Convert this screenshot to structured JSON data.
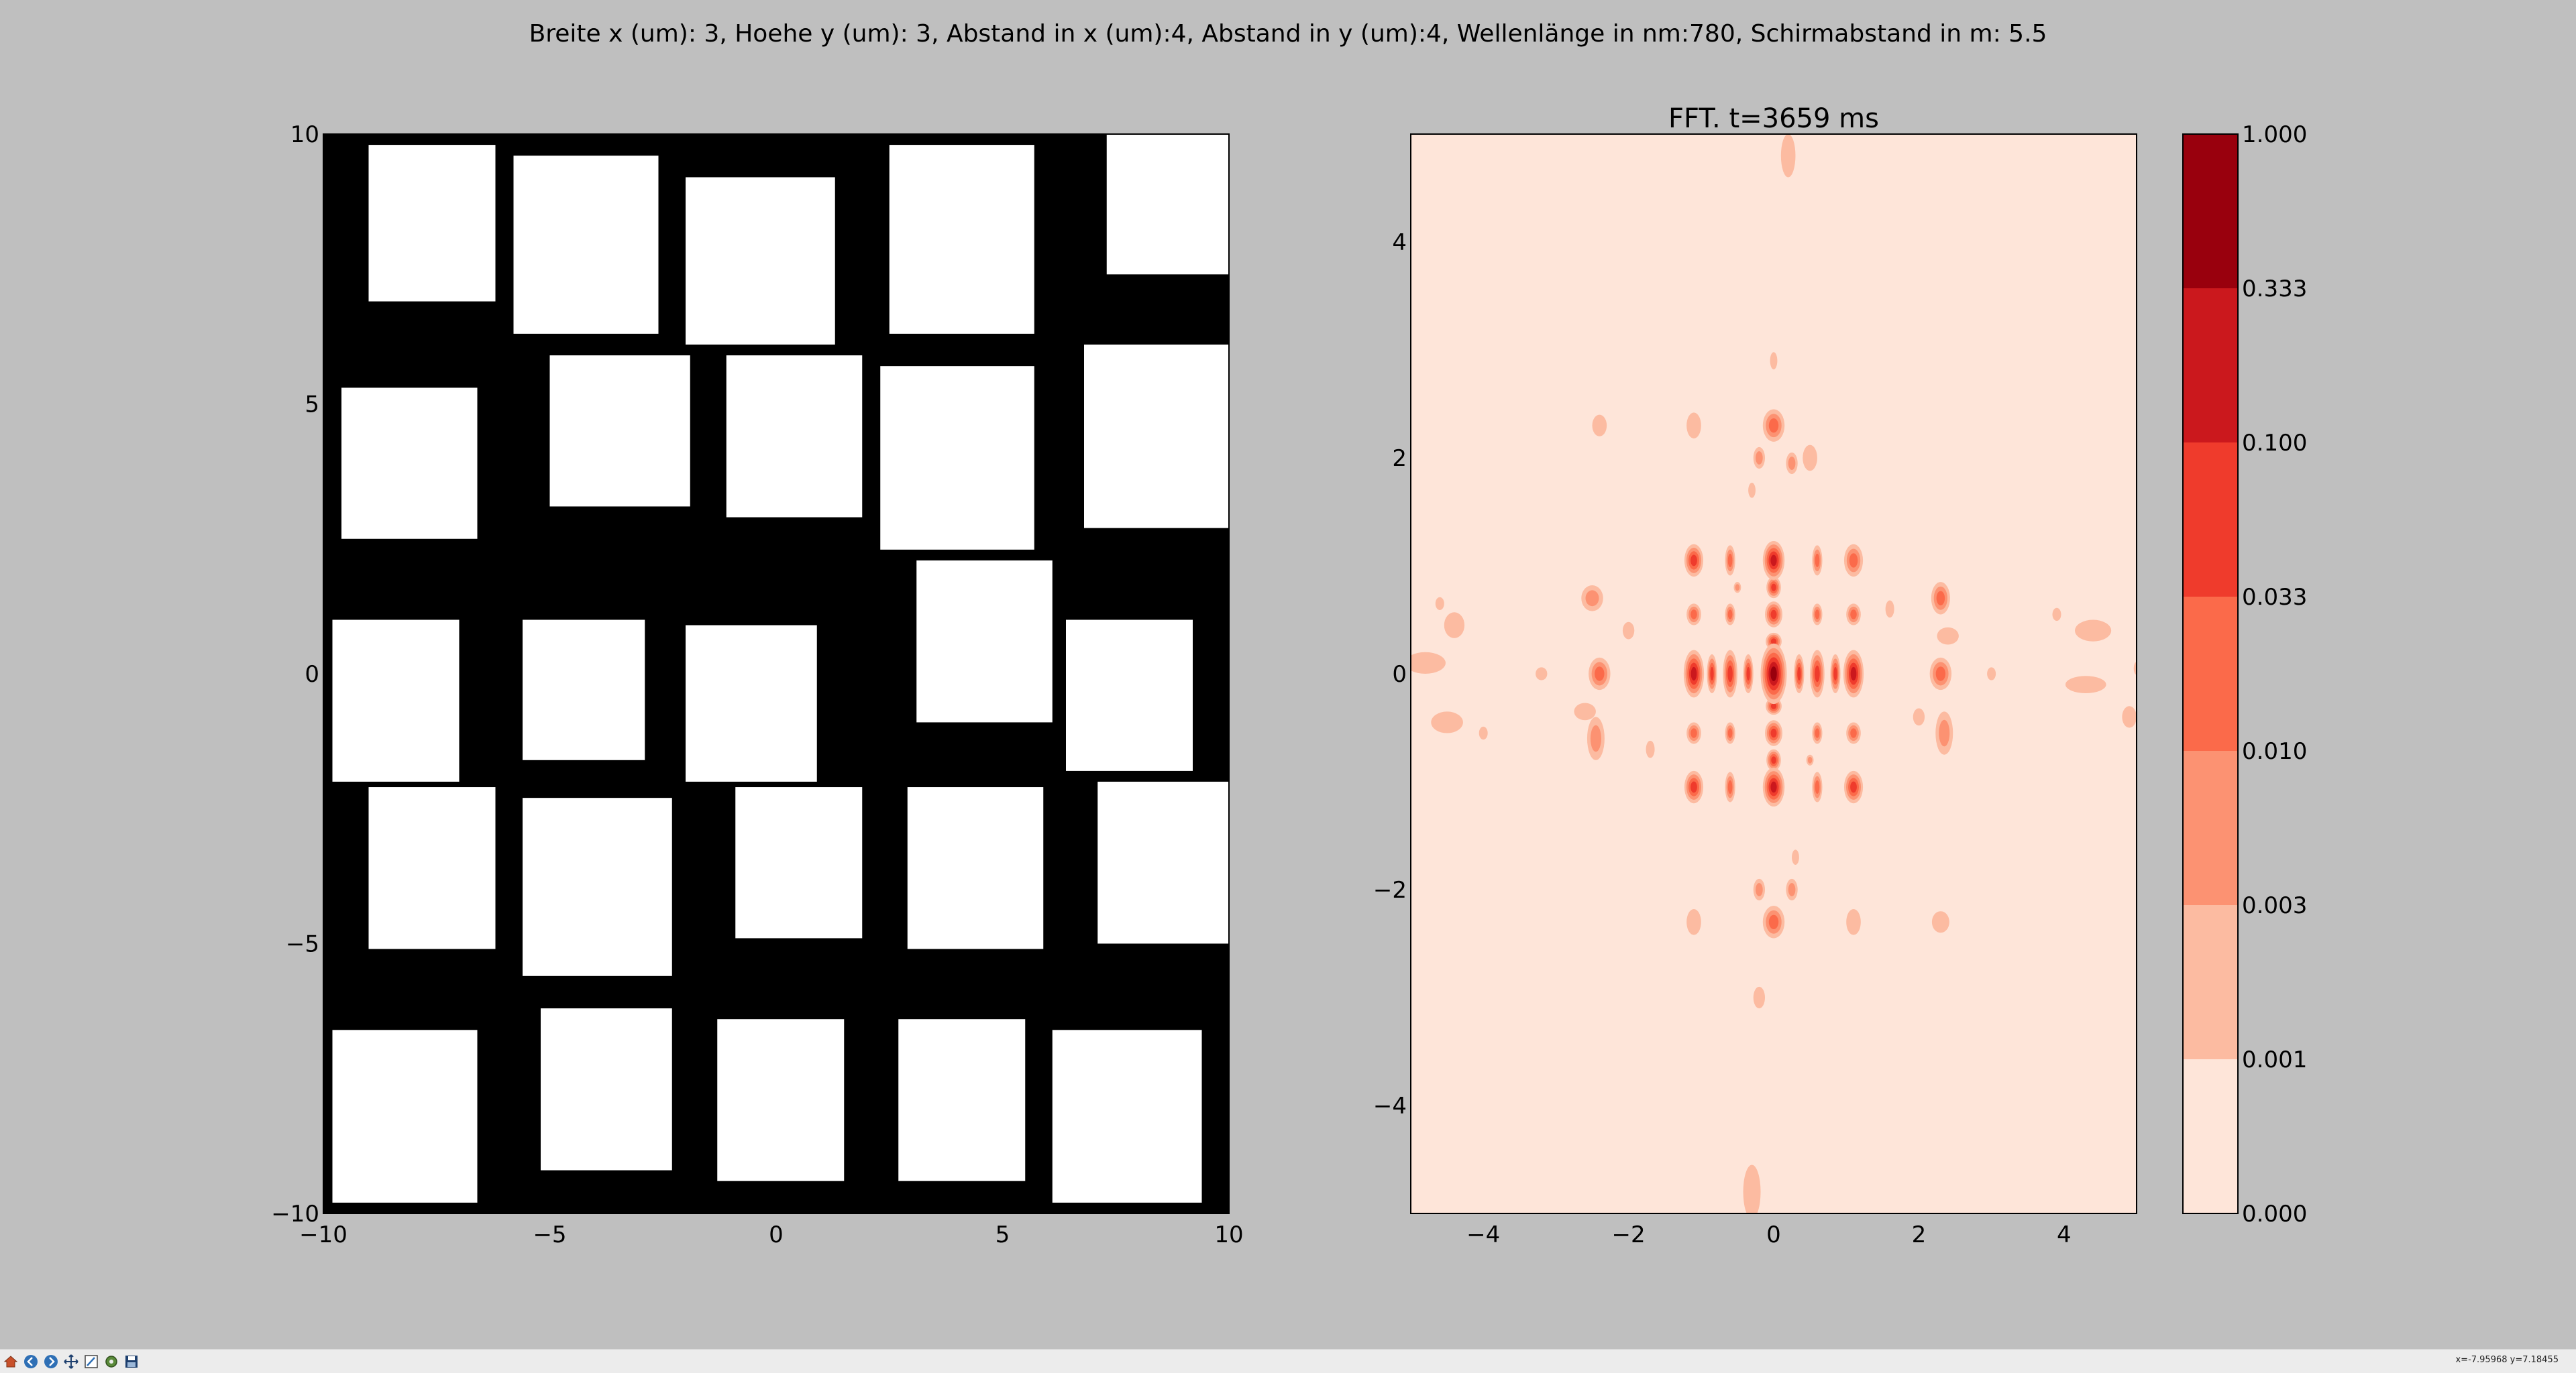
{
  "figure": {
    "suptitle": "Breite x (um): 3, Hoehe y (um): 3, Abstand in x (um):4, Abstand in y (um):4, Wellenlänge in nm:780, Schirmabstand in m: 5.5"
  },
  "chart_data": [
    {
      "type": "other",
      "title": "",
      "xlim": [
        -10,
        10
      ],
      "ylim": [
        -10,
        10
      ],
      "xticks": [
        "−10",
        "−5",
        "0",
        "5",
        "10"
      ],
      "yticks": [
        "10",
        "5",
        "0",
        "−5",
        "−10"
      ],
      "background": "#000000",
      "rect_color": "#ffffff",
      "rects": [
        {
          "x0": -9.0,
          "x1": -6.2,
          "y0": 6.9,
          "y1": 9.8
        },
        {
          "x0": -5.8,
          "x1": -2.6,
          "y0": 6.3,
          "y1": 9.6
        },
        {
          "x0": -2.0,
          "x1": 1.3,
          "y0": 6.1,
          "y1": 9.2
        },
        {
          "x0": 2.5,
          "x1": 5.7,
          "y0": 6.3,
          "y1": 9.8
        },
        {
          "x0": 7.3,
          "x1": 10.0,
          "y0": 7.4,
          "y1": 10.0
        },
        {
          "x0": -9.6,
          "x1": -6.6,
          "y0": 2.5,
          "y1": 5.3
        },
        {
          "x0": -5.0,
          "x1": -1.9,
          "y0": 3.1,
          "y1": 5.9
        },
        {
          "x0": -1.1,
          "x1": 1.9,
          "y0": 2.9,
          "y1": 5.9
        },
        {
          "x0": 2.3,
          "x1": 5.7,
          "y0": 2.3,
          "y1": 5.7
        },
        {
          "x0": 6.8,
          "x1": 10.0,
          "y0": 2.7,
          "y1": 6.1
        },
        {
          "x0": -9.8,
          "x1": -7.0,
          "y0": -2.0,
          "y1": 1.0
        },
        {
          "x0": -5.6,
          "x1": -2.9,
          "y0": -1.6,
          "y1": 1.0
        },
        {
          "x0": -2.0,
          "x1": 0.9,
          "y0": -2.0,
          "y1": 0.9
        },
        {
          "x0": 3.1,
          "x1": 6.1,
          "y0": -0.9,
          "y1": 2.1
        },
        {
          "x0": 6.4,
          "x1": 9.2,
          "y0": -1.8,
          "y1": 1.0
        },
        {
          "x0": -9.0,
          "x1": -6.2,
          "y0": -5.1,
          "y1": -2.1
        },
        {
          "x0": -5.6,
          "x1": -2.3,
          "y0": -5.6,
          "y1": -2.3
        },
        {
          "x0": -0.9,
          "x1": 1.9,
          "y0": -4.9,
          "y1": -2.1
        },
        {
          "x0": 2.9,
          "x1": 5.9,
          "y0": -5.1,
          "y1": -2.1
        },
        {
          "x0": 7.1,
          "x1": 10.0,
          "y0": -5.0,
          "y1": -2.0
        },
        {
          "x0": -9.8,
          "x1": -6.6,
          "y0": -9.8,
          "y1": -6.6
        },
        {
          "x0": -5.2,
          "x1": -2.3,
          "y0": -9.2,
          "y1": -6.2
        },
        {
          "x0": -1.3,
          "x1": 1.5,
          "y0": -9.4,
          "y1": -6.4
        },
        {
          "x0": 2.7,
          "x1": 5.5,
          "y0": -9.4,
          "y1": -6.4
        },
        {
          "x0": 6.1,
          "x1": 9.4,
          "y0": -9.8,
          "y1": -6.6
        }
      ]
    },
    {
      "type": "heatmap",
      "title": "FFT. t=3659 ms",
      "xlim": [
        -5,
        5
      ],
      "ylim": [
        -5,
        5
      ],
      "xticks": [
        "−4",
        "−2",
        "0",
        "2",
        "4"
      ],
      "yticks": [
        "4",
        "2",
        "0",
        "−2",
        "−4"
      ],
      "level_colors": [
        "#fee5d9",
        "#fcbba1",
        "#fc9272",
        "#fb6a4a",
        "#ef3b2c",
        "#cb181d",
        "#99000d"
      ],
      "blobs": [
        {
          "x": 0.0,
          "y": 0.0,
          "rx": 0.18,
          "ry": 0.28,
          "level": 6
        },
        {
          "x": -0.6,
          "y": 0.0,
          "rx": 0.1,
          "ry": 0.22,
          "level": 4
        },
        {
          "x": 0.6,
          "y": 0.0,
          "rx": 0.1,
          "ry": 0.22,
          "level": 4
        },
        {
          "x": -1.1,
          "y": 0.0,
          "rx": 0.14,
          "ry": 0.22,
          "level": 5
        },
        {
          "x": 1.1,
          "y": 0.0,
          "rx": 0.14,
          "ry": 0.22,
          "level": 5
        },
        {
          "x": -0.85,
          "y": 0.0,
          "rx": 0.07,
          "ry": 0.18,
          "level": 4
        },
        {
          "x": 0.85,
          "y": 0.0,
          "rx": 0.07,
          "ry": 0.18,
          "level": 4
        },
        {
          "x": -0.35,
          "y": 0.0,
          "rx": 0.07,
          "ry": 0.18,
          "level": 4
        },
        {
          "x": 0.35,
          "y": 0.0,
          "rx": 0.07,
          "ry": 0.18,
          "level": 4
        },
        {
          "x": 0.0,
          "y": 1.05,
          "rx": 0.15,
          "ry": 0.18,
          "level": 5
        },
        {
          "x": 0.0,
          "y": -1.05,
          "rx": 0.15,
          "ry": 0.18,
          "level": 5
        },
        {
          "x": 0.0,
          "y": 0.55,
          "rx": 0.12,
          "ry": 0.12,
          "level": 4
        },
        {
          "x": 0.0,
          "y": -0.55,
          "rx": 0.12,
          "ry": 0.12,
          "level": 4
        },
        {
          "x": 0.0,
          "y": 0.8,
          "rx": 0.1,
          "ry": 0.1,
          "level": 4
        },
        {
          "x": 0.0,
          "y": -0.8,
          "rx": 0.1,
          "ry": 0.1,
          "level": 4
        },
        {
          "x": 0.0,
          "y": 0.3,
          "rx": 0.11,
          "ry": 0.08,
          "level": 4
        },
        {
          "x": 0.0,
          "y": -0.3,
          "rx": 0.11,
          "ry": 0.08,
          "level": 4
        },
        {
          "x": -1.1,
          "y": 1.05,
          "rx": 0.13,
          "ry": 0.15,
          "level": 4
        },
        {
          "x": 1.1,
          "y": 1.05,
          "rx": 0.13,
          "ry": 0.15,
          "level": 3
        },
        {
          "x": -1.1,
          "y": -1.05,
          "rx": 0.13,
          "ry": 0.15,
          "level": 4
        },
        {
          "x": 1.1,
          "y": -1.05,
          "rx": 0.13,
          "ry": 0.15,
          "level": 4
        },
        {
          "x": -0.6,
          "y": 1.05,
          "rx": 0.07,
          "ry": 0.14,
          "level": 3
        },
        {
          "x": 0.6,
          "y": 1.05,
          "rx": 0.07,
          "ry": 0.14,
          "level": 3
        },
        {
          "x": -0.6,
          "y": -1.05,
          "rx": 0.07,
          "ry": 0.14,
          "level": 3
        },
        {
          "x": 0.6,
          "y": -1.05,
          "rx": 0.07,
          "ry": 0.14,
          "level": 3
        },
        {
          "x": -0.6,
          "y": 0.55,
          "rx": 0.07,
          "ry": 0.1,
          "level": 3
        },
        {
          "x": 0.6,
          "y": 0.55,
          "rx": 0.07,
          "ry": 0.1,
          "level": 3
        },
        {
          "x": -0.6,
          "y": -0.55,
          "rx": 0.07,
          "ry": 0.1,
          "level": 3
        },
        {
          "x": 0.6,
          "y": -0.55,
          "rx": 0.07,
          "ry": 0.1,
          "level": 3
        },
        {
          "x": -1.1,
          "y": 0.55,
          "rx": 0.1,
          "ry": 0.1,
          "level": 3
        },
        {
          "x": 1.1,
          "y": 0.55,
          "rx": 0.1,
          "ry": 0.1,
          "level": 3
        },
        {
          "x": -1.1,
          "y": -0.55,
          "rx": 0.1,
          "ry": 0.1,
          "level": 3
        },
        {
          "x": 1.1,
          "y": -0.55,
          "rx": 0.1,
          "ry": 0.1,
          "level": 3
        },
        {
          "x": -2.4,
          "y": 0.0,
          "rx": 0.15,
          "ry": 0.15,
          "level": 3
        },
        {
          "x": 2.3,
          "y": 0.0,
          "rx": 0.15,
          "ry": 0.15,
          "level": 3
        },
        {
          "x": -2.5,
          "y": 0.7,
          "rx": 0.15,
          "ry": 0.12,
          "level": 2
        },
        {
          "x": 2.3,
          "y": 0.7,
          "rx": 0.13,
          "ry": 0.15,
          "level": 3
        },
        {
          "x": -2.45,
          "y": -0.6,
          "rx": 0.12,
          "ry": 0.2,
          "level": 2
        },
        {
          "x": 2.35,
          "y": -0.55,
          "rx": 0.12,
          "ry": 0.2,
          "level": 2
        },
        {
          "x": 0.0,
          "y": 2.3,
          "rx": 0.15,
          "ry": 0.15,
          "level": 3
        },
        {
          "x": 0.0,
          "y": -2.3,
          "rx": 0.15,
          "ry": 0.15,
          "level": 3
        },
        {
          "x": -0.2,
          "y": 2.0,
          "rx": 0.08,
          "ry": 0.1,
          "level": 2
        },
        {
          "x": 0.25,
          "y": 1.95,
          "rx": 0.08,
          "ry": 0.1,
          "level": 2
        },
        {
          "x": -0.2,
          "y": -2.0,
          "rx": 0.08,
          "ry": 0.1,
          "level": 2
        },
        {
          "x": 0.25,
          "y": -2.0,
          "rx": 0.08,
          "ry": 0.1,
          "level": 2
        },
        {
          "x": -1.1,
          "y": 2.3,
          "rx": 0.1,
          "ry": 0.12,
          "level": 1
        },
        {
          "x": -1.1,
          "y": -2.3,
          "rx": 0.1,
          "ry": 0.12,
          "level": 1
        },
        {
          "x": 1.1,
          "y": -2.3,
          "rx": 0.1,
          "ry": 0.12,
          "level": 1
        },
        {
          "x": 0.5,
          "y": 2.0,
          "rx": 0.1,
          "ry": 0.12,
          "level": 1
        },
        {
          "x": -2.4,
          "y": 2.3,
          "rx": 0.1,
          "ry": 0.1,
          "level": 1
        },
        {
          "x": 2.3,
          "y": -2.3,
          "rx": 0.12,
          "ry": 0.1,
          "level": 1
        },
        {
          "x": -2.6,
          "y": -0.35,
          "rx": 0.15,
          "ry": 0.08,
          "level": 1
        },
        {
          "x": 2.4,
          "y": 0.35,
          "rx": 0.15,
          "ry": 0.08,
          "level": 1
        },
        {
          "x": -4.4,
          "y": 0.45,
          "rx": 0.14,
          "ry": 0.12,
          "level": 1
        },
        {
          "x": -4.5,
          "y": -0.45,
          "rx": 0.22,
          "ry": 0.1,
          "level": 1
        },
        {
          "x": -4.8,
          "y": 0.1,
          "rx": 0.28,
          "ry": 0.1,
          "level": 1
        },
        {
          "x": 4.4,
          "y": 0.4,
          "rx": 0.25,
          "ry": 0.1,
          "level": 1
        },
        {
          "x": 4.3,
          "y": -0.1,
          "rx": 0.28,
          "ry": 0.08,
          "level": 1
        },
        {
          "x": 4.9,
          "y": -0.4,
          "rx": 0.1,
          "ry": 0.1,
          "level": 1
        },
        {
          "x": 0.2,
          "y": 4.8,
          "rx": 0.1,
          "ry": 0.2,
          "level": 1
        },
        {
          "x": -0.3,
          "y": -4.8,
          "rx": 0.12,
          "ry": 0.25,
          "level": 1
        },
        {
          "x": -0.2,
          "y": -3.0,
          "rx": 0.08,
          "ry": 0.1,
          "level": 1
        },
        {
          "x": 0.0,
          "y": 2.9,
          "rx": 0.05,
          "ry": 0.08,
          "level": 1
        },
        {
          "x": -2.0,
          "y": 0.4,
          "rx": 0.08,
          "ry": 0.08,
          "level": 1
        },
        {
          "x": 2.0,
          "y": -0.4,
          "rx": 0.08,
          "ry": 0.08,
          "level": 1
        },
        {
          "x": 1.6,
          "y": 0.6,
          "rx": 0.06,
          "ry": 0.08,
          "level": 1
        },
        {
          "x": -1.7,
          "y": -0.7,
          "rx": 0.06,
          "ry": 0.08,
          "level": 1
        },
        {
          "x": 3.0,
          "y": 0.0,
          "rx": 0.06,
          "ry": 0.06,
          "level": 1
        },
        {
          "x": -3.2,
          "y": 0.0,
          "rx": 0.08,
          "ry": 0.06,
          "level": 1
        },
        {
          "x": -4.0,
          "y": -0.55,
          "rx": 0.06,
          "ry": 0.06,
          "level": 1
        },
        {
          "x": 3.9,
          "y": 0.55,
          "rx": 0.06,
          "ry": 0.06,
          "level": 1
        },
        {
          "x": -4.6,
          "y": 0.65,
          "rx": 0.06,
          "ry": 0.06,
          "level": 1
        },
        {
          "x": 5.0,
          "y": 0.05,
          "rx": 0.04,
          "ry": 0.06,
          "level": 1
        },
        {
          "x": -0.5,
          "y": 0.8,
          "rx": 0.05,
          "ry": 0.05,
          "level": 2
        },
        {
          "x": 0.5,
          "y": -0.8,
          "rx": 0.05,
          "ry": 0.05,
          "level": 2
        },
        {
          "x": -0.3,
          "y": 1.7,
          "rx": 0.05,
          "ry": 0.07,
          "level": 1
        },
        {
          "x": 0.3,
          "y": -1.7,
          "rx": 0.05,
          "ry": 0.07,
          "level": 1
        }
      ]
    }
  ],
  "colorbar": {
    "labels": [
      "1.000",
      "0.333",
      "0.100",
      "0.033",
      "0.010",
      "0.003",
      "0.001",
      "0.000"
    ],
    "colors": [
      "#99000d",
      "#cb181d",
      "#ef3b2c",
      "#fb6a4a",
      "#fc9272",
      "#fcbba1",
      "#fee5d9"
    ]
  },
  "toolbar": {
    "icons": [
      "home-icon",
      "back-icon",
      "forward-icon",
      "pan-icon",
      "zoom-icon",
      "configure-icon",
      "save-icon"
    ],
    "coords": "x=-7.95968     y=7.18455"
  }
}
